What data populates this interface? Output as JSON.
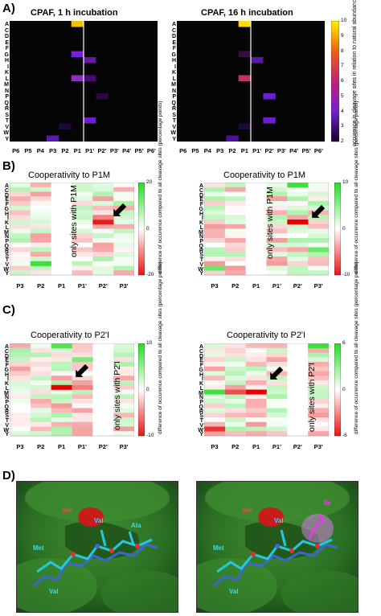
{
  "amino_acids": [
    "A",
    "C",
    "D",
    "E",
    "F",
    "G",
    "H",
    "I",
    "K",
    "L",
    "M",
    "N",
    "P",
    "Q",
    "R",
    "S",
    "T",
    "V",
    "W",
    "Y"
  ],
  "panelA": {
    "letter": "A)",
    "left_title": "CPAF, 1 h incubation",
    "right_title": "CPAF, 16 h incubation",
    "positions": [
      "P6",
      "P5",
      "P4",
      "P3",
      "P2",
      "P1",
      "P1'",
      "P2'",
      "P3'",
      "P4'",
      "P5'",
      "P6'"
    ],
    "colorbar_ticks": [
      "10",
      "9",
      "8",
      "7",
      "6",
      "5",
      "4",
      "3",
      "2"
    ],
    "colorbar_label": "occurence in cleavage sites in relation to natural abundance",
    "colors": {
      "low": "#1a0030",
      "mid": "#7b1fd1",
      "high": "#f5d600"
    }
  },
  "panelB": {
    "letter": "B)",
    "left_title": "Cooperativity to P1M",
    "right_title": "Cooperativity to P1M",
    "positions": [
      "P3",
      "P2",
      "P1",
      "P1'",
      "P2'",
      "P3'"
    ],
    "only_text": "only sites with P1M",
    "left_ticks": [
      "20",
      "0",
      "-20"
    ],
    "right_ticks": [
      "10",
      "0",
      "-10"
    ],
    "colorbar_label": "difference of occurence compared to all cleavage sites (percentage points)"
  },
  "panelC": {
    "letter": "C)",
    "left_title": "Cooperativity to P2'I",
    "right_title": "Cooperativity to P2'I",
    "positions": [
      "P3",
      "P2",
      "P1",
      "P1'",
      "P2'",
      "P3'"
    ],
    "only_text": "only sites with P2'I",
    "left_ticks": [
      "10",
      "0",
      "-10"
    ],
    "right_ticks": [
      "6",
      "0",
      "-6"
    ],
    "colorbar_label": "difference of occurence compared to all cleavage sites (percentage points)"
  },
  "panelD": {
    "letter": "D)",
    "left_labels": {
      "ser": "Ser",
      "val1": "Val",
      "ala": "Ala",
      "met": "Met",
      "val2": "Val"
    },
    "right_labels": {
      "ser": "Ser",
      "val1": "Val",
      "ile": "Ile",
      "met": "Met",
      "val2": "Val"
    }
  }
}
